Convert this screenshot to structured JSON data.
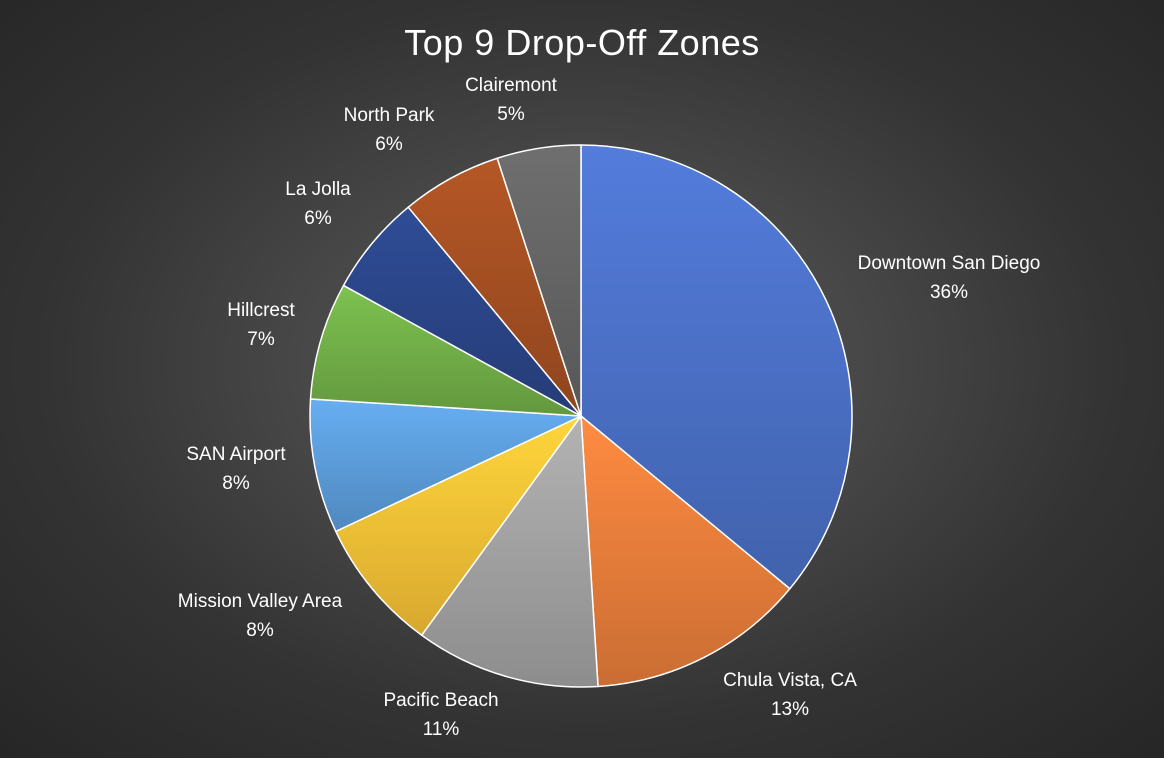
{
  "chart_data": {
    "type": "pie",
    "title": "Top 9 Drop-Off Zones",
    "slices": [
      {
        "label": "Downtown San Diego",
        "value": 36,
        "display": "36%",
        "color": "#4a6fc4"
      },
      {
        "label": "Chula Vista, CA",
        "value": 13,
        "display": "13%",
        "color": "#e67c3a"
      },
      {
        "label": "Pacific Beach",
        "value": 11,
        "display": "11%",
        "color": "#a0a0a0"
      },
      {
        "label": "Mission Valley Area",
        "value": 8,
        "display": "8%",
        "color": "#f5bf35"
      },
      {
        "label": "SAN Airport",
        "value": 8,
        "display": "8%",
        "color": "#5b9bd8"
      },
      {
        "label": "Hillcrest",
        "value": 7,
        "display": "7%",
        "color": "#70ad47"
      },
      {
        "label": "La Jolla",
        "value": 6,
        "display": "6%",
        "color": "#2a4486"
      },
      {
        "label": "North Park",
        "value": 6,
        "display": "6%",
        "color": "#a24e22"
      },
      {
        "label": "Clairemont",
        "value": 5,
        "display": "5%",
        "color": "#636363"
      }
    ]
  }
}
